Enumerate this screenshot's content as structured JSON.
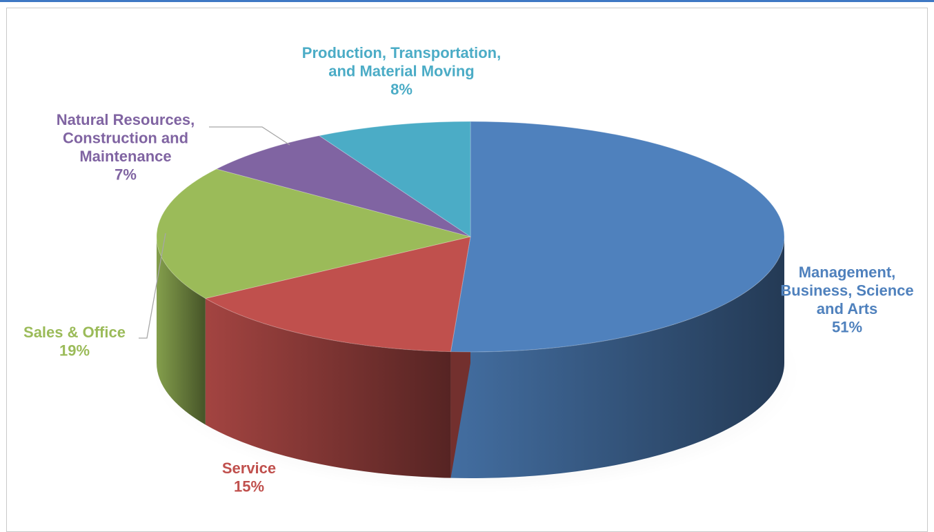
{
  "chart_data": {
    "type": "pie",
    "title": "",
    "slices": [
      {
        "name_lines": [
          "Management,",
          "Business, Science",
          "and Arts"
        ],
        "pct_label": "51%",
        "value": 51,
        "color": "#4f81bd"
      },
      {
        "name_lines": [
          "Service"
        ],
        "pct_label": "15%",
        "value": 15,
        "color": "#c0504d"
      },
      {
        "name_lines": [
          "Sales & Office"
        ],
        "pct_label": "19%",
        "value": 19,
        "color": "#9bbb59"
      },
      {
        "name_lines": [
          "Natural Resources,",
          "Construction and",
          "Maintenance"
        ],
        "pct_label": "7%",
        "value": 7,
        "color": "#8064a2"
      },
      {
        "name_lines": [
          "Production, Transportation,",
          "and Material Moving"
        ],
        "pct_label": "8%",
        "value": 8,
        "color": "#4bacc6"
      }
    ]
  }
}
